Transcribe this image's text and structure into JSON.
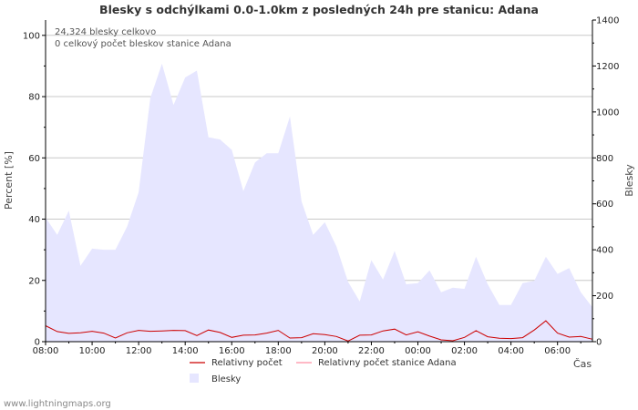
{
  "chart_data": {
    "type": "area",
    "title": "Blesky s odchýlkami 0.0-1.0km z posledných 24h pre stanicu: Adana",
    "info_lines": [
      "24,324 blesky celkovo",
      "0 celkový počet bleskov stanice Adana"
    ],
    "y_left_label": "Percent   [%]",
    "y_right_label": "Blesky",
    "x_label": "Čas",
    "y_left_ticks": [
      "0",
      "20",
      "40",
      "60",
      "80",
      "100"
    ],
    "y_right_ticks": [
      "0",
      "200",
      "400",
      "600",
      "800",
      "1000",
      "1200",
      "1400"
    ],
    "x_ticks": [
      "08:00",
      "10:00",
      "12:00",
      "14:00",
      "16:00",
      "18:00",
      "20:00",
      "22:00",
      "00:00",
      "02:00",
      "04:00",
      "06:00"
    ],
    "ylim_left": [
      0,
      105
    ],
    "ylim_right": [
      0,
      1400
    ],
    "x_hours": [
      0,
      0.5,
      1,
      1.5,
      2,
      2.5,
      3,
      3.5,
      4,
      4.5,
      5,
      5.5,
      6,
      6.5,
      7,
      7.5,
      8,
      8.5,
      9,
      9.5,
      10,
      10.5,
      11,
      11.5,
      12,
      12.5,
      13,
      13.5,
      14,
      14.5,
      15,
      15.5,
      16,
      16.5,
      17,
      17.5,
      18,
      18.5,
      19,
      19.5,
      20,
      20.5,
      21,
      21.5,
      22,
      22.5,
      23,
      23.5
    ],
    "series": [
      {
        "name": "Blesky",
        "axis": "right",
        "color": "#e6e6ff",
        "values": [
          540,
          465,
          570,
          330,
          405,
          400,
          400,
          500,
          650,
          1060,
          1210,
          1030,
          1150,
          1180,
          890,
          880,
          835,
          655,
          780,
          820,
          820,
          980,
          610,
          465,
          520,
          415,
          260,
          175,
          355,
          270,
          395,
          250,
          255,
          310,
          215,
          235,
          230,
          370,
          250,
          160,
          160,
          255,
          265,
          370,
          295,
          320,
          215,
          150
        ]
      },
      {
        "name": "Relativny počet",
        "axis": "left",
        "color": "#cc0000",
        "values": [
          5.2,
          3.3,
          2.7,
          2.9,
          3.4,
          2.8,
          1.2,
          2.9,
          3.7,
          3.4,
          3.5,
          3.7,
          3.6,
          2.0,
          3.8,
          3.0,
          1.4,
          2.1,
          2.2,
          2.8,
          3.7,
          1.2,
          1.3,
          2.6,
          2.3,
          1.7,
          0.2,
          2.1,
          2.2,
          3.5,
          4.1,
          2.2,
          3.2,
          1.8,
          0.6,
          0.3,
          1.4,
          3.6,
          1.6,
          1.1,
          1.0,
          1.3,
          3.8,
          6.8,
          2.8,
          1.5,
          1.7,
          0.8
        ]
      },
      {
        "name": "Relativny počet stanice Adana",
        "axis": "left",
        "color": "#ff8fa5",
        "values": [
          0,
          0,
          0,
          0,
          0,
          0,
          0,
          0,
          0,
          0,
          0,
          0,
          0,
          0,
          0,
          0,
          0,
          0,
          0,
          0,
          0,
          0,
          0,
          0,
          0,
          0,
          0,
          0,
          0,
          0,
          0,
          0,
          0,
          0,
          0,
          0,
          0,
          0,
          0,
          0,
          0,
          0,
          0,
          0,
          0,
          0,
          0,
          0
        ]
      }
    ],
    "legend": [
      {
        "label": "Relativny počet",
        "kind": "line",
        "color": "#cc0000"
      },
      {
        "label": "Relativny počet stanice Adana",
        "kind": "line",
        "color": "#ff8fa5"
      },
      {
        "label": "Blesky",
        "kind": "box",
        "color": "#e6e6ff"
      }
    ]
  },
  "footer": "www.lightningmaps.org"
}
